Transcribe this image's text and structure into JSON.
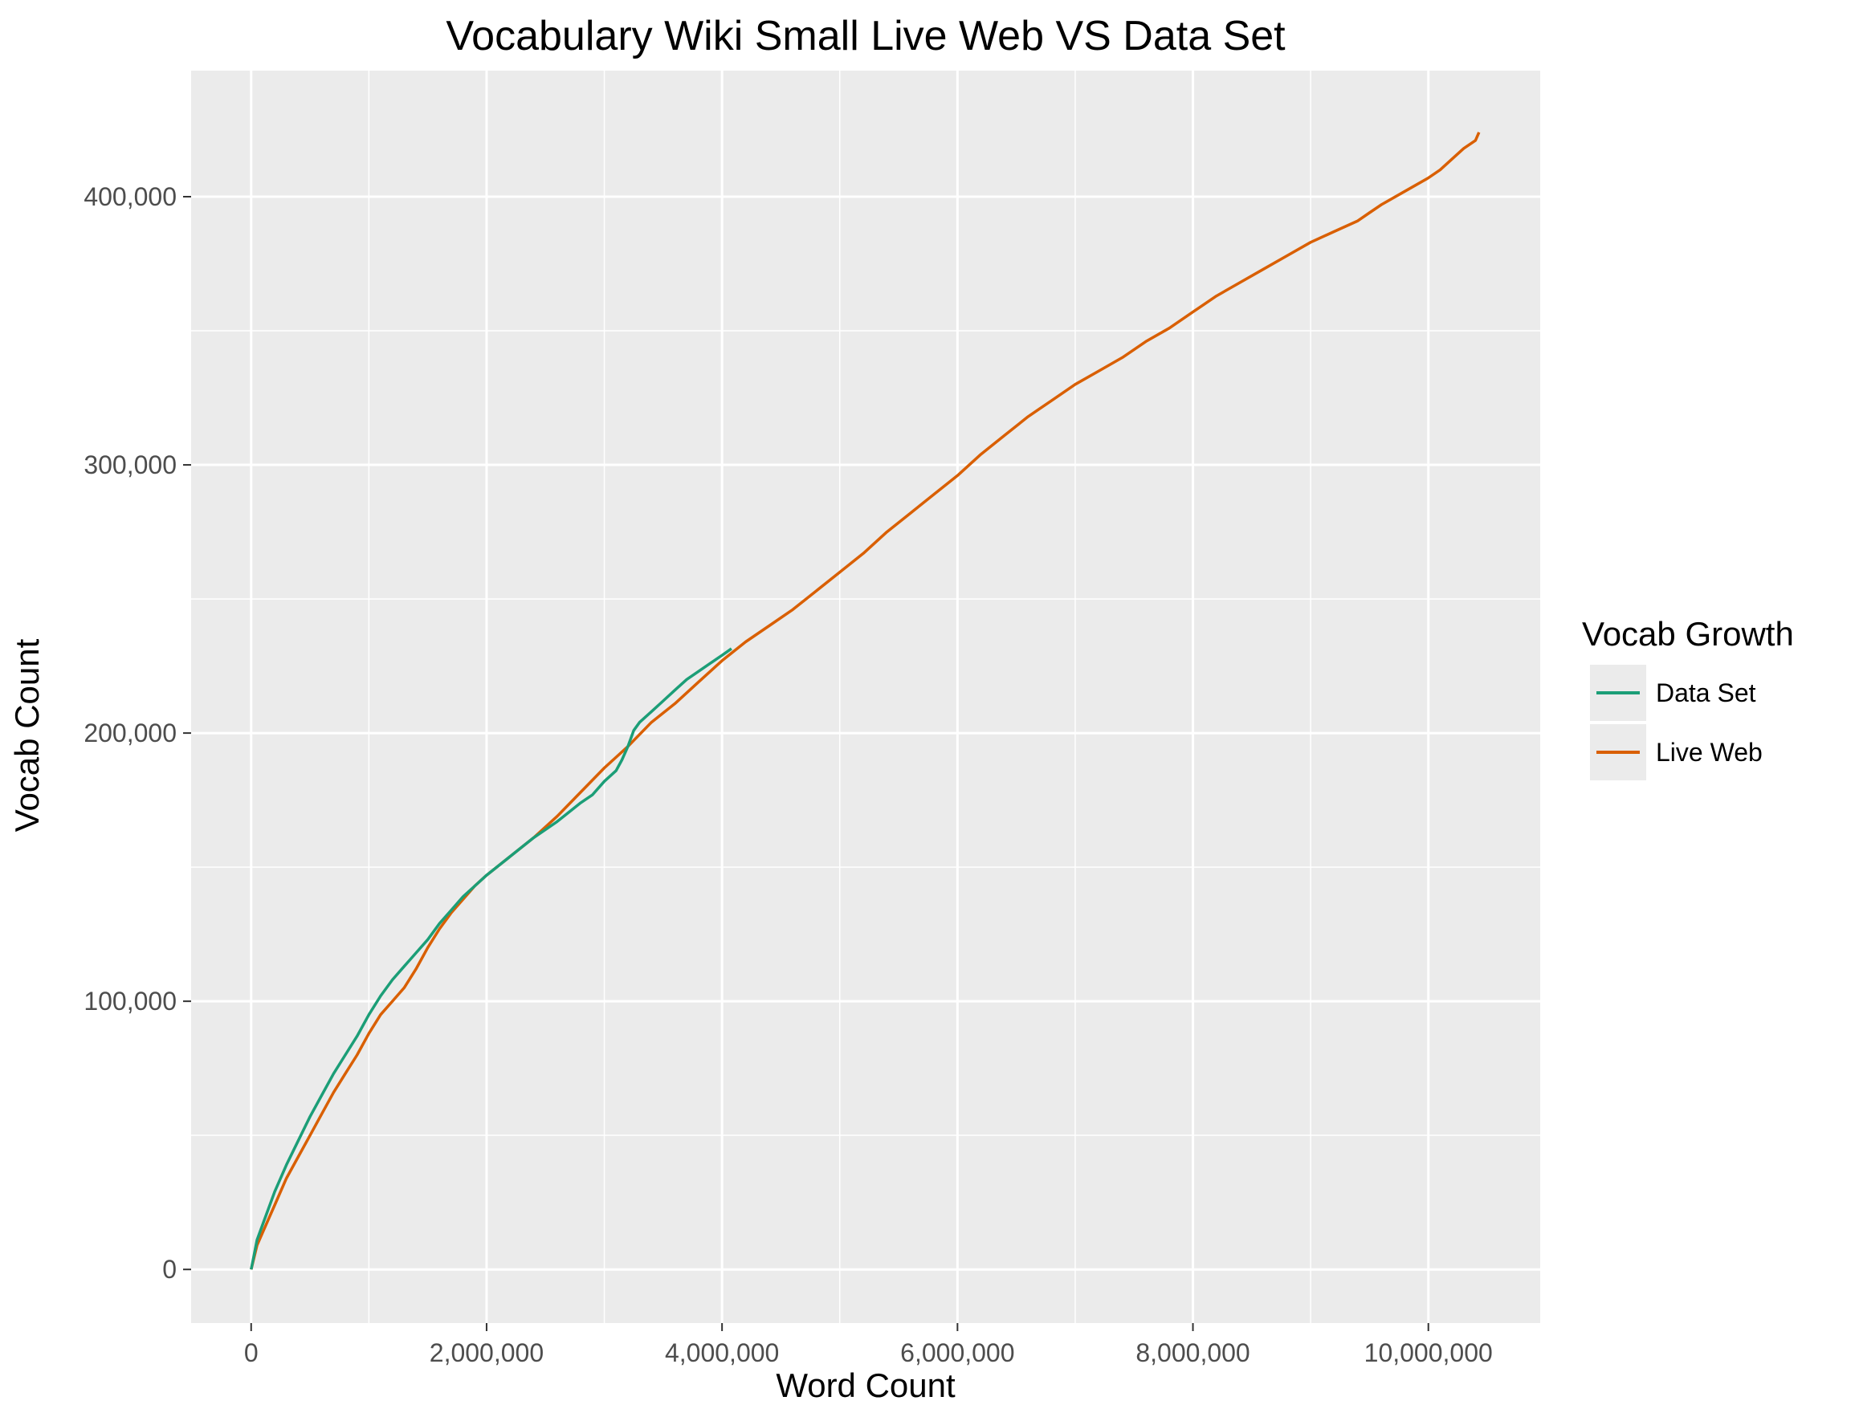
{
  "chart_data": {
    "type": "line",
    "title": "Vocabulary Wiki Small Live Web VS Data Set",
    "xlabel": "Word Count",
    "ylabel": "Vocab Count",
    "xlim": [
      -510000,
      10950000
    ],
    "ylim": [
      -20000,
      447000
    ],
    "x_ticks": [
      0,
      2000000,
      4000000,
      6000000,
      8000000,
      10000000
    ],
    "x_tick_labels": [
      "0",
      "2,000,000",
      "4,000,000",
      "6,000,000",
      "8,000,000",
      "10,000,000"
    ],
    "y_ticks": [
      0,
      100000,
      200000,
      300000,
      400000
    ],
    "y_tick_labels": [
      "0",
      "100,000",
      "200,000",
      "300,000",
      "400,000"
    ],
    "grid": true,
    "legend": {
      "title": "Vocab Growth",
      "placement": "right"
    },
    "series": [
      {
        "name": "Data Set",
        "color": "#1b9e77",
        "x": [
          0,
          50000,
          100000,
          200000,
          300000,
          400000,
          500000,
          600000,
          700000,
          800000,
          900000,
          1000000,
          1100000,
          1200000,
          1300000,
          1400000,
          1500000,
          1600000,
          1700000,
          1800000,
          1900000,
          2000000,
          2200000,
          2400000,
          2600000,
          2800000,
          2900000,
          3000000,
          3100000,
          3150000,
          3200000,
          3250000,
          3300000,
          3400000,
          3500000,
          3600000,
          3700000,
          3800000,
          3900000,
          4000000,
          4080000
        ],
        "y": [
          0,
          11000,
          17000,
          29000,
          39000,
          48000,
          57000,
          65000,
          73000,
          80000,
          87000,
          95000,
          102000,
          108000,
          113000,
          118000,
          123000,
          129000,
          134000,
          139000,
          143000,
          147000,
          154000,
          161000,
          167000,
          174000,
          177000,
          182000,
          186000,
          190000,
          195000,
          201000,
          204000,
          208000,
          212000,
          216000,
          220000,
          223000,
          226000,
          229000,
          231500
        ]
      },
      {
        "name": "Live Web",
        "color": "#d95f02",
        "x": [
          0,
          50000,
          100000,
          200000,
          300000,
          400000,
          500000,
          600000,
          700000,
          800000,
          900000,
          1000000,
          1100000,
          1200000,
          1300000,
          1400000,
          1500000,
          1600000,
          1700000,
          1800000,
          1900000,
          2000000,
          2200000,
          2400000,
          2600000,
          2800000,
          3000000,
          3200000,
          3400000,
          3600000,
          3800000,
          4000000,
          4200000,
          4400000,
          4600000,
          4800000,
          5000000,
          5200000,
          5400000,
          5600000,
          5800000,
          6000000,
          6200000,
          6400000,
          6600000,
          6800000,
          7000000,
          7200000,
          7400000,
          7600000,
          7800000,
          8000000,
          8200000,
          8400000,
          8600000,
          8800000,
          9000000,
          9200000,
          9400000,
          9500000,
          9600000,
          9800000,
          10000000,
          10100000,
          10200000,
          10300000,
          10400000,
          10430000
        ],
        "y": [
          0,
          9000,
          14000,
          24000,
          34000,
          42000,
          50000,
          58000,
          66000,
          73000,
          80000,
          88000,
          95000,
          100000,
          105000,
          112000,
          120000,
          127000,
          133000,
          138000,
          143000,
          147000,
          154000,
          161000,
          169000,
          178000,
          187000,
          195000,
          204000,
          211000,
          219000,
          227000,
          234000,
          240000,
          246000,
          253000,
          260000,
          267000,
          275000,
          282000,
          289000,
          296000,
          304000,
          311000,
          318000,
          324000,
          330000,
          335000,
          340000,
          346000,
          351000,
          357000,
          363000,
          368000,
          373000,
          378000,
          383000,
          387000,
          391000,
          394000,
          397000,
          402000,
          407000,
          410000,
          414000,
          418000,
          421000,
          424000
        ]
      }
    ]
  }
}
